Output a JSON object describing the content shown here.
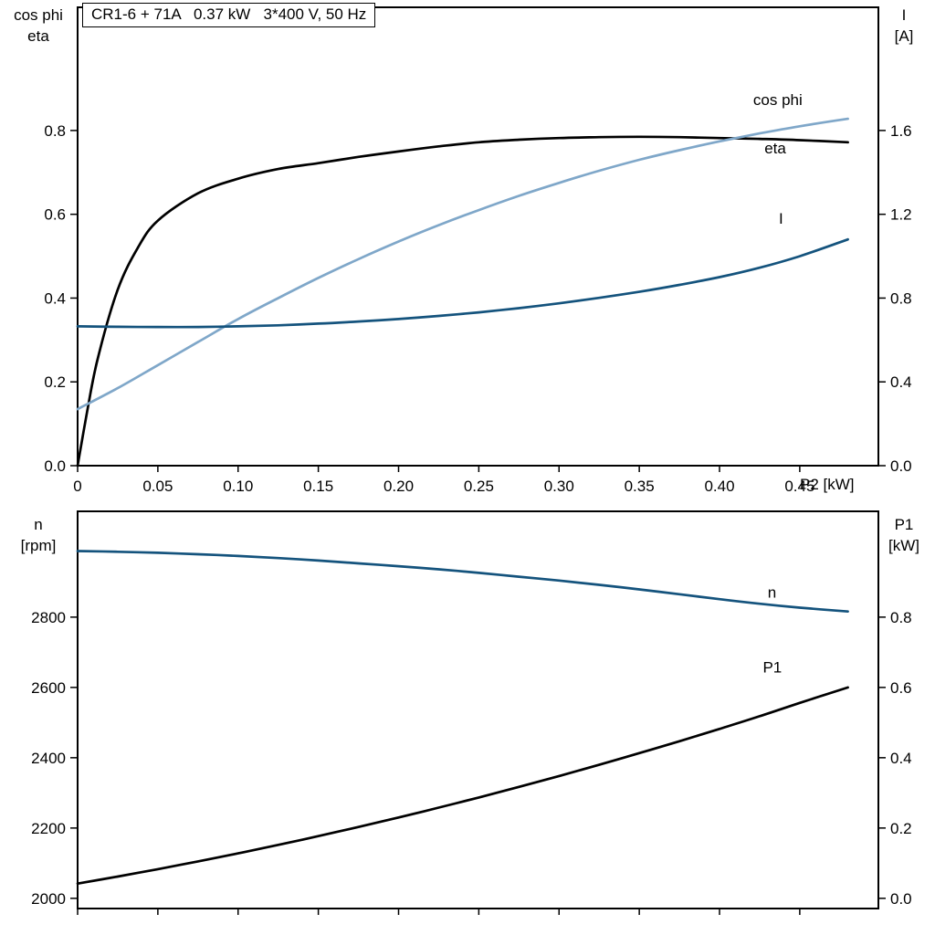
{
  "colors": {
    "curve_black": "#000000",
    "curve_light_blue": "#7FA7C9",
    "curve_dark_blue": "#14537D",
    "frame": "#000000",
    "background": "#FFFFFF"
  },
  "chart_data": [
    {
      "type": "line",
      "title": "CR1-6 + 71A   0.37 kW   3*400 V, 50 Hz",
      "xlabel": "P2 [kW]",
      "grid": false,
      "x_range": [
        0,
        0.499
      ],
      "x_ticks": [
        {
          "v": 0,
          "label": "0"
        },
        {
          "v": 0.05,
          "label": "0.05"
        },
        {
          "v": 0.1,
          "label": "0.10"
        },
        {
          "v": 0.15,
          "label": "0.15"
        },
        {
          "v": 0.2,
          "label": "0.20"
        },
        {
          "v": 0.25,
          "label": "0.25"
        },
        {
          "v": 0.3,
          "label": "0.30"
        },
        {
          "v": 0.35,
          "label": "0.35"
        },
        {
          "v": 0.4,
          "label": "0.40"
        },
        {
          "v": 0.45,
          "label": "0.45"
        }
      ],
      "x_tick_labels": true,
      "left_axis": {
        "labels": [
          "cos phi",
          "eta"
        ],
        "range": [
          0,
          1.094
        ],
        "ticks": [
          {
            "v": 0.0,
            "label": "0.0"
          },
          {
            "v": 0.2,
            "label": "0.2"
          },
          {
            "v": 0.4,
            "label": "0.4"
          },
          {
            "v": 0.6,
            "label": "0.6"
          },
          {
            "v": 0.8,
            "label": "0.8"
          }
        ]
      },
      "right_axis": {
        "labels": [
          "I",
          "[A]"
        ],
        "range": [
          0,
          2.188
        ],
        "ticks": [
          {
            "v": 0.0,
            "label": "0.0"
          },
          {
            "v": 0.4,
            "label": "0.4"
          },
          {
            "v": 0.8,
            "label": "0.8"
          },
          {
            "v": 1.2,
            "label": "1.2"
          },
          {
            "v": 1.6,
            "label": "1.6"
          }
        ]
      },
      "series": [
        {
          "name": "eta",
          "axis": "left",
          "color": "#000000",
          "label_x": 0.428,
          "label_y": 0.745,
          "x": [
            0,
            0.006,
            0.0125,
            0.025,
            0.0375,
            0.05,
            0.075,
            0.1,
            0.125,
            0.15,
            0.175,
            0.2,
            0.225,
            0.25,
            0.275,
            0.3,
            0.325,
            0.35,
            0.375,
            0.4,
            0.425,
            0.45,
            0.48
          ],
          "y": [
            0,
            0.13,
            0.255,
            0.42,
            0.52,
            0.585,
            0.65,
            0.685,
            0.708,
            0.722,
            0.737,
            0.75,
            0.762,
            0.772,
            0.778,
            0.782,
            0.784,
            0.785,
            0.784,
            0.782,
            0.78,
            0.777,
            0.772
          ]
        },
        {
          "name": "cos phi",
          "axis": "left",
          "color": "#7FA7C9",
          "label_x": 0.421,
          "label_y": 0.861,
          "x": [
            0,
            0.025,
            0.05,
            0.075,
            0.1,
            0.125,
            0.15,
            0.175,
            0.2,
            0.225,
            0.25,
            0.275,
            0.3,
            0.325,
            0.35,
            0.375,
            0.4,
            0.425,
            0.45,
            0.48
          ],
          "y": [
            0.135,
            0.185,
            0.24,
            0.295,
            0.35,
            0.4,
            0.448,
            0.493,
            0.535,
            0.574,
            0.61,
            0.644,
            0.675,
            0.704,
            0.73,
            0.753,
            0.774,
            0.793,
            0.81,
            0.828
          ]
        },
        {
          "name": "I",
          "axis": "right",
          "color": "#14537D",
          "label_x": 0.437,
          "label_y": 1.155,
          "x": [
            0,
            0.025,
            0.05,
            0.075,
            0.1,
            0.125,
            0.15,
            0.175,
            0.2,
            0.225,
            0.25,
            0.275,
            0.3,
            0.325,
            0.35,
            0.375,
            0.4,
            0.425,
            0.45,
            0.48
          ],
          "y": [
            0.665,
            0.663,
            0.662,
            0.662,
            0.665,
            0.67,
            0.678,
            0.688,
            0.7,
            0.715,
            0.732,
            0.752,
            0.775,
            0.801,
            0.83,
            0.863,
            0.9,
            0.945,
            1.0,
            1.08
          ]
        }
      ]
    },
    {
      "type": "line",
      "title": "",
      "xlabel": "",
      "grid": false,
      "x_range": [
        0,
        0.499
      ],
      "x_ticks": [
        {
          "v": 0,
          "label": ""
        },
        {
          "v": 0.05,
          "label": ""
        },
        {
          "v": 0.1,
          "label": ""
        },
        {
          "v": 0.15,
          "label": ""
        },
        {
          "v": 0.2,
          "label": ""
        },
        {
          "v": 0.25,
          "label": ""
        },
        {
          "v": 0.3,
          "label": ""
        },
        {
          "v": 0.35,
          "label": ""
        },
        {
          "v": 0.4,
          "label": ""
        },
        {
          "v": 0.45,
          "label": ""
        }
      ],
      "x_tick_labels": false,
      "left_axis": {
        "labels": [
          "n",
          "[rpm]"
        ],
        "range": [
          1971,
          3101
        ],
        "ticks": [
          {
            "v": 2000,
            "label": "2000"
          },
          {
            "v": 2200,
            "label": "2200"
          },
          {
            "v": 2400,
            "label": "2400"
          },
          {
            "v": 2600,
            "label": "2600"
          },
          {
            "v": 2800,
            "label": "2800"
          }
        ]
      },
      "right_axis": {
        "labels": [
          "P1",
          "[kW]"
        ],
        "range": [
          -0.029,
          1.101
        ],
        "ticks": [
          {
            "v": 0.0,
            "label": "0.0"
          },
          {
            "v": 0.2,
            "label": "0.2"
          },
          {
            "v": 0.4,
            "label": "0.4"
          },
          {
            "v": 0.6,
            "label": "0.6"
          },
          {
            "v": 0.8,
            "label": "0.8"
          }
        ]
      },
      "series": [
        {
          "name": "n",
          "axis": "left",
          "color": "#14537D",
          "label_x": 0.43,
          "label_y": 2855,
          "x": [
            0,
            0.025,
            0.05,
            0.075,
            0.1,
            0.125,
            0.15,
            0.175,
            0.2,
            0.225,
            0.25,
            0.275,
            0.3,
            0.325,
            0.35,
            0.375,
            0.4,
            0.425,
            0.45,
            0.48
          ],
          "y": [
            2988,
            2986,
            2983,
            2979,
            2974,
            2968,
            2961,
            2953,
            2945,
            2936,
            2926,
            2915,
            2904,
            2892,
            2879,
            2865,
            2851,
            2838,
            2827,
            2816
          ]
        },
        {
          "name": "P1",
          "axis": "right",
          "color": "#000000",
          "label_x": 0.427,
          "label_y": 0.642,
          "x": [
            0,
            0.025,
            0.05,
            0.075,
            0.1,
            0.125,
            0.15,
            0.175,
            0.2,
            0.225,
            0.25,
            0.275,
            0.3,
            0.325,
            0.35,
            0.375,
            0.4,
            0.425,
            0.45,
            0.48
          ],
          "y": [
            0.042,
            0.062,
            0.083,
            0.105,
            0.128,
            0.152,
            0.177,
            0.203,
            0.23,
            0.258,
            0.287,
            0.317,
            0.348,
            0.38,
            0.413,
            0.447,
            0.482,
            0.518,
            0.556,
            0.6
          ]
        }
      ]
    }
  ]
}
